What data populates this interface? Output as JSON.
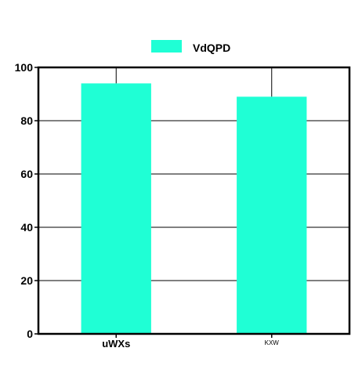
{
  "chart_data": {
    "type": "bar",
    "categories": [
      "uWXs",
      "KXW"
    ],
    "series": [
      {
        "name": "VdQPD",
        "values": [
          94,
          89
        ],
        "color": "#1fffd5"
      }
    ],
    "title": "",
    "xlabel": "",
    "ylabel": "",
    "ylim": [
      0,
      100
    ],
    "yticks": [
      0,
      20,
      40,
      60,
      80,
      100
    ],
    "grid": true,
    "legend_position": "top-center"
  }
}
